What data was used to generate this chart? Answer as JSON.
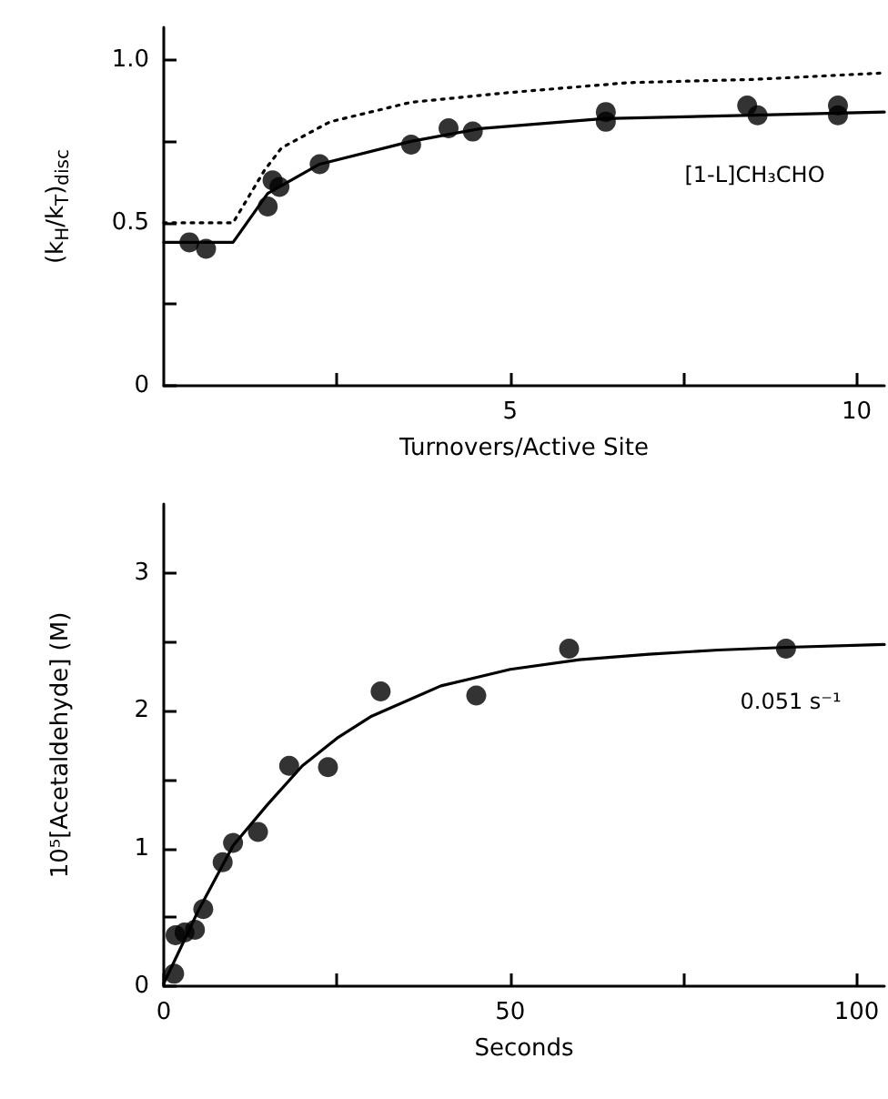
{
  "chart_data": [
    {
      "type": "scatter",
      "xlabel": "Turnovers/Active Site",
      "ylabel": "(k$_{H}$/k$_{T}$)$_{disc}$",
      "xlim": [
        0,
        10.4
      ],
      "ylim": [
        0,
        1.1
      ],
      "xticks": [
        {
          "value": 2.5,
          "label": null
        },
        5,
        {
          "value": 7.5,
          "label": null
        },
        10
      ],
      "yticks": [
        0,
        {
          "value": 0.25,
          "label": null
        },
        0.5,
        {
          "value": 0.75,
          "label": null
        },
        {
          "value": 1,
          "label": "1.0"
        }
      ],
      "annotations": [
        "[1-L]CH₃CHO"
      ],
      "series": [
        {
          "color": "#000000",
          "marker": "circle",
          "x": [
            0.37,
            0.61,
            1.5,
            1.57,
            1.67,
            2.25,
            3.57,
            4.11,
            4.46,
            6.38,
            6.38,
            8.42,
            8.57,
            9.73,
            9.73
          ],
          "values": [
            0.44,
            0.42,
            0.55,
            0.63,
            0.61,
            0.68,
            0.74,
            0.79,
            0.78,
            0.84,
            0.81,
            0.86,
            0.83,
            0.86,
            0.83
          ]
        },
        {
          "type": "line",
          "color": "#000000",
          "marker": "none",
          "line_style": "solid",
          "x": [
            0,
            1,
            1.5,
            2.25,
            3.57,
            4.6,
            6.35,
            8.5,
            10.4
          ],
          "values": [
            0.44,
            0.44,
            0.59,
            0.68,
            0.75,
            0.79,
            0.82,
            0.83,
            0.84
          ]
        },
        {
          "type": "line",
          "color": "#000000",
          "marker": "none",
          "line_style": "dotted",
          "x": [
            0,
            1,
            1.45,
            1.7,
            2.4,
            3.57,
            5,
            6.7,
            8.5,
            10.4
          ],
          "values": [
            0.5,
            0.5,
            0.66,
            0.73,
            0.81,
            0.87,
            0.9,
            0.93,
            0.94,
            0.96
          ]
        }
      ]
    },
    {
      "type": "scatter",
      "xlabel": "Seconds",
      "ylabel": "10⁵[Acetaldehyde] (M)",
      "xlim": [
        0,
        104
      ],
      "ylim": [
        0,
        3.5
      ],
      "xticks": [
        0,
        {
          "value": 25,
          "label": null
        },
        50,
        {
          "value": 75,
          "label": null
        },
        100
      ],
      "yticks": [
        0,
        {
          "value": 0.5,
          "label": null
        },
        1,
        {
          "value": 1.5,
          "label": null
        },
        2,
        {
          "value": 2.5,
          "label": null
        },
        3
      ],
      "annotations": [
        "0.051 s⁻¹"
      ],
      "series": [
        {
          "color": "#000000",
          "marker": "circle",
          "x": [
            1.5,
            1.7,
            3,
            4.5,
            5.7,
            8.5,
            10,
            13.6,
            18.1,
            23.7,
            31.3,
            45.1,
            58.5,
            89.8
          ],
          "values": [
            0.09,
            0.37,
            0.39,
            0.41,
            0.56,
            0.9,
            1.04,
            1.12,
            1.6,
            1.59,
            2.14,
            2.11,
            2.45,
            2.45
          ]
        },
        {
          "type": "line",
          "color": "#000000",
          "marker": "none",
          "line_style": "solid",
          "x": [
            0,
            5,
            10,
            15,
            20,
            25,
            30,
            40,
            50,
            60,
            70,
            80,
            90,
            104
          ],
          "values": [
            0.02,
            0.55,
            1.02,
            1.32,
            1.6,
            1.8,
            1.96,
            2.18,
            2.3,
            2.37,
            2.41,
            2.44,
            2.46,
            2.48
          ]
        }
      ]
    }
  ]
}
